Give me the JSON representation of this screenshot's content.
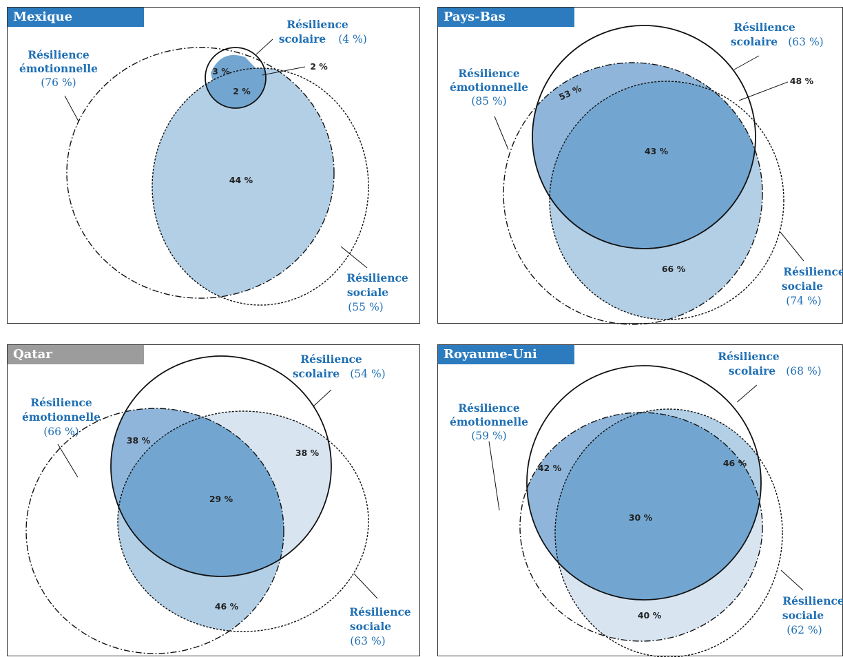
{
  "colors": {
    "title_blue": "#2c7bbf",
    "title_gray": "#9c9c9c",
    "label_blue": "#1f6fb4",
    "fill_dark": "#72a6d0",
    "fill_mid": "#b2cfe6",
    "fill_light": "#d8e5f1",
    "stroke": "#111111"
  },
  "legend_info": {
    "solid_line": "Résilience scolaire",
    "dashdot_line": "Résilience émotionnelle",
    "dotted_line": "Résilience sociale"
  },
  "panels": [
    {
      "title": "Mexique",
      "title_color": "blue",
      "scolaire": {
        "name_line1": "Résilience",
        "name_line2": "scolaire",
        "pct": "(4 %)"
      },
      "emotionnelle": {
        "name_line1": "Résilience",
        "name_line2": "émotionnelle",
        "pct": "(76 %)"
      },
      "sociale": {
        "name_line1": "Résilience",
        "name_line2": "sociale",
        "pct": "(55 %)"
      },
      "values": [
        "3 %",
        "2 %",
        "2 %",
        "44 %"
      ]
    },
    {
      "title": "Pays-Bas",
      "title_color": "blue",
      "scolaire": {
        "name_line1": "Résilience",
        "name_line2": "scolaire",
        "pct": "(63 %)"
      },
      "emotionnelle": {
        "name_line1": "Résilience",
        "name_line2": "émotionnelle",
        "pct": "(85 %)"
      },
      "sociale": {
        "name_line1": "Résilience",
        "name_line2": "sociale",
        "pct": "(74 %)"
      },
      "values": [
        "53 %",
        "48 %",
        "43 %",
        "66 %"
      ]
    },
    {
      "title": "Qatar",
      "title_color": "gray",
      "scolaire": {
        "name_line1": "Résilience",
        "name_line2": "scolaire",
        "pct": "(54 %)"
      },
      "emotionnelle": {
        "name_line1": "Résilience",
        "name_line2": "émotionnelle",
        "pct": "(66 %)"
      },
      "sociale": {
        "name_line1": "Résilience",
        "name_line2": "sociale",
        "pct": "(63 %)"
      },
      "values": [
        "38 %",
        "38 %",
        "29 %",
        "46 %"
      ]
    },
    {
      "title": "Royaume-Uni",
      "title_color": "blue",
      "scolaire": {
        "name_line1": "Résilience",
        "name_line2": "scolaire",
        "pct": "(68 %)"
      },
      "emotionnelle": {
        "name_line1": "Résilience",
        "name_line2": "émotionnelle",
        "pct": "(59 %)"
      },
      "sociale": {
        "name_line1": "Résilience",
        "name_line2": "sociale",
        "pct": "(62 %)"
      },
      "values": [
        "42 %",
        "46 %",
        "30 %",
        "40 %"
      ]
    }
  ]
}
